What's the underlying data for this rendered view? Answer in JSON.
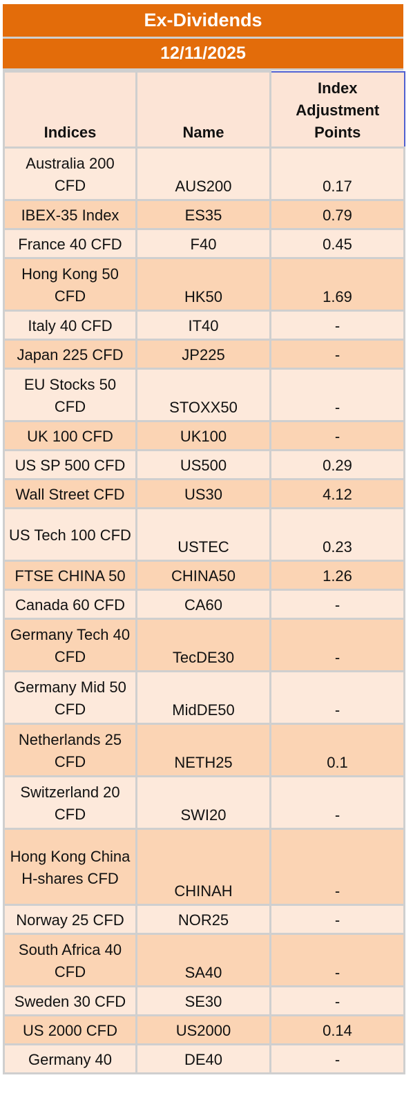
{
  "title": "Ex-Dividends",
  "date": "12/11/2025",
  "headers": {
    "indices": "Indices",
    "name": "Name",
    "points": "Index Adjustment Points"
  },
  "rows": [
    {
      "index": "Australia 200 CFD",
      "name": "AUS200",
      "points": "0.17"
    },
    {
      "index": "IBEX-35 Index",
      "name": "ES35",
      "points": "0.79"
    },
    {
      "index": "France 40 CFD",
      "name": "F40",
      "points": "0.45"
    },
    {
      "index": "Hong Kong 50 CFD",
      "name": "HK50",
      "points": "1.69"
    },
    {
      "index": "Italy 40 CFD",
      "name": "IT40",
      "points": "-"
    },
    {
      "index": "Japan 225 CFD",
      "name": "JP225",
      "points": "-"
    },
    {
      "index": "EU Stocks 50 CFD",
      "name": "STOXX50",
      "points": "-"
    },
    {
      "index": "UK 100 CFD",
      "name": "UK100",
      "points": "-"
    },
    {
      "index": "US SP 500 CFD",
      "name": "US500",
      "points": "0.29"
    },
    {
      "index": "Wall Street CFD",
      "name": "US30",
      "points": "4.12"
    },
    {
      "index": "US Tech 100 CFD",
      "name": "USTEC",
      "points": "0.23"
    },
    {
      "index": "FTSE CHINA 50",
      "name": "CHINA50",
      "points": "1.26"
    },
    {
      "index": "Canada 60 CFD",
      "name": "CA60",
      "points": "-"
    },
    {
      "index": "Germany Tech 40 CFD",
      "name": "TecDE30",
      "points": "-"
    },
    {
      "index": "Germany Mid 50 CFD",
      "name": "MidDE50",
      "points": "-"
    },
    {
      "index": "Netherlands 25 CFD",
      "name": "NETH25",
      "points": "0.1"
    },
    {
      "index": "Switzerland 20 CFD",
      "name": "SWI20",
      "points": "-"
    },
    {
      "index": "Hong Kong China H-shares CFD",
      "name": "CHINAH",
      "points": "-"
    },
    {
      "index": "Norway 25 CFD",
      "name": "NOR25",
      "points": "-"
    },
    {
      "index": "South Africa 40 CFD",
      "name": "SA40",
      "points": "-"
    },
    {
      "index": "Sweden 30 CFD",
      "name": "SE30",
      "points": "-"
    },
    {
      "index": "US 2000 CFD",
      "name": "US2000",
      "points": "0.14"
    },
    {
      "index": "Germany 40",
      "name": "DE40",
      "points": "-"
    }
  ],
  "colors": {
    "header_orange": "#e36c0a",
    "row_light": "#fde9db",
    "row_dark": "#fbd4b4",
    "grid": "#cfcfcf"
  }
}
